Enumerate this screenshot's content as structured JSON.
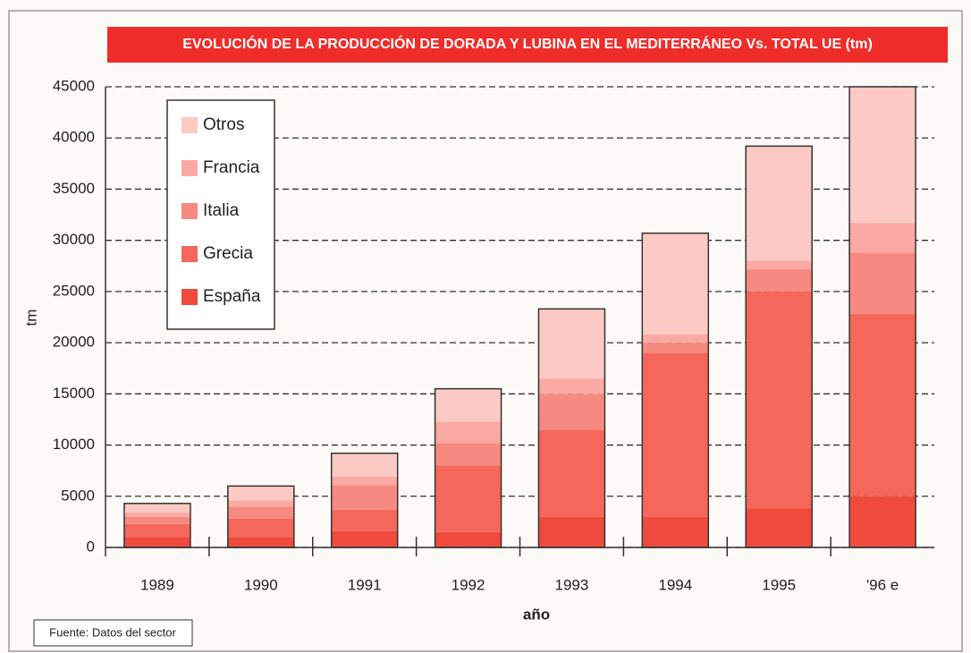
{
  "chart_data": {
    "type": "stacked_bar",
    "title": "EVOLUCIÓN DE LA PRODUCCIÓN DE DORADA Y LUBINA EN EL MEDITERRÁNEO Vs. TOTAL UE (tm)",
    "x_label": "año",
    "y_label": "tm",
    "source": "Fuente: Datos del sector",
    "categories": [
      "1989",
      "1990",
      "1991",
      "1992",
      "1993",
      "1994",
      "1995",
      "'96 e"
    ],
    "series": [
      {
        "name": "España",
        "color": "#f04a3c",
        "values": [
          1000,
          1000,
          1600,
          1500,
          3000,
          3000,
          3800,
          5000
        ]
      },
      {
        "name": "Grecia",
        "color": "#f4675a",
        "values": [
          1300,
          1800,
          2100,
          6500,
          8500,
          16000,
          21200,
          17800
        ]
      },
      {
        "name": "Italia",
        "color": "#f78a80",
        "values": [
          700,
          1200,
          2400,
          2200,
          3500,
          1000,
          2200,
          6000
        ]
      },
      {
        "name": "Francia",
        "color": "#faaaa3",
        "values": [
          400,
          600,
          800,
          2100,
          1500,
          800,
          800,
          2900
        ]
      },
      {
        "name": "Otros",
        "color": "#fcc9c4",
        "values": [
          900,
          1400,
          2300,
          3200,
          6800,
          9900,
          11200,
          13300
        ]
      }
    ],
    "ylim": [
      0,
      45000
    ],
    "yticks": [
      0,
      5000,
      10000,
      15000,
      20000,
      25000,
      30000,
      35000,
      40000,
      45000
    ],
    "grid": true,
    "legend_position": "upper left"
  }
}
